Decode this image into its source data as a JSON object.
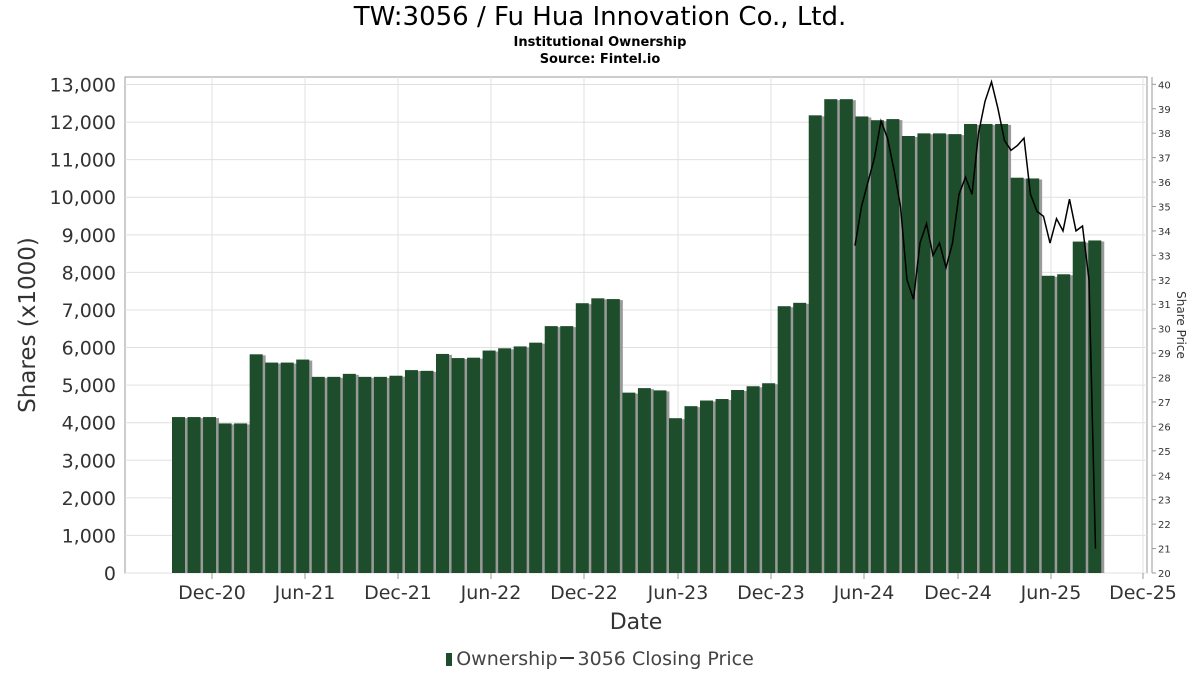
{
  "title": "TW:3056 / Fu Hua Innovation Co., Ltd.",
  "subtitle": "Institutional Ownership",
  "source": "Source: Fintel.io",
  "chart_data": {
    "type": "bar",
    "xlabel": "Date",
    "ylabel": "Shares (x1000)",
    "y2label": "Share Price",
    "ylim": [
      0,
      13200
    ],
    "y2lim": [
      20,
      40.3
    ],
    "yticks": [
      "0",
      "1,000",
      "2,000",
      "3,000",
      "4,000",
      "5,000",
      "6,000",
      "7,000",
      "8,000",
      "9,000",
      "10,000",
      "11,000",
      "12,000",
      "13,000"
    ],
    "y2ticks": [
      "20",
      "21",
      "22",
      "23",
      "24",
      "25",
      "26",
      "27",
      "28",
      "29",
      "30",
      "31",
      "32",
      "33",
      "34",
      "35",
      "36",
      "37",
      "38",
      "39",
      "40"
    ],
    "xticks": [
      "Dec-20",
      "Jun-21",
      "Dec-21",
      "Jun-22",
      "Dec-22",
      "Jun-23",
      "Dec-23",
      "Jun-24",
      "Dec-24",
      "Jun-25",
      "Dec-25"
    ],
    "grid": true,
    "legend_position": "bottom",
    "series": [
      {
        "name": "Ownership",
        "color": "#1e4d2b",
        "values": [
          4150,
          4150,
          4150,
          3980,
          3980,
          5820,
          5600,
          5600,
          5680,
          5220,
          5220,
          5300,
          5220,
          5220,
          5250,
          5400,
          5380,
          5830,
          5720,
          5730,
          5920,
          5980,
          6030,
          6130,
          6570,
          6570,
          7180,
          7310,
          7290,
          4800,
          4920,
          4860,
          4120,
          4440,
          4590,
          4630,
          4870,
          4970,
          5050,
          7100,
          7190,
          12180,
          12610,
          12610,
          12150,
          12050,
          12080,
          11630,
          11700,
          11700,
          11680,
          11950,
          11950,
          11950,
          10520,
          10500,
          7910,
          7950,
          8820,
          8850
        ]
      },
      {
        "name": "3056 Closing Price",
        "color": "#000000",
        "points": [
          [
            "Jun-24",
            33.4
          ],
          [
            "Jun-24",
            35
          ],
          [
            "Jun-24",
            36
          ],
          [
            "Jun-24",
            37
          ],
          [
            "Jun-24",
            38.5
          ],
          [
            "Jun-24",
            37.8
          ],
          [
            "Jun-24",
            36.5
          ],
          [
            "Dec-24",
            35
          ],
          [
            "Dec-24",
            32
          ],
          [
            "Dec-24",
            31.2
          ],
          [
            "Dec-24",
            33.5
          ],
          [
            "Dec-24",
            34.3
          ],
          [
            "Dec-24",
            33
          ],
          [
            "Dec-24",
            33.5
          ],
          [
            "Dec-24",
            32.5
          ],
          [
            "Dec-24",
            33.5
          ],
          [
            "Dec-24",
            35.5
          ],
          [
            "Dec-24",
            36.2
          ],
          [
            "Dec-24",
            35.5
          ],
          [
            "Dec-24",
            38
          ],
          [
            "Dec-24",
            39.3
          ],
          [
            "Jun-25",
            40.1
          ],
          [
            "Jun-25",
            39
          ],
          [
            "Jun-25",
            37.7
          ],
          [
            "Jun-25",
            37.3
          ],
          [
            "Jun-25",
            37.5
          ],
          [
            "Jun-25",
            37.8
          ],
          [
            "Jun-25",
            35.5
          ],
          [
            "Jun-25",
            34.8
          ],
          [
            "Jun-25",
            34.6
          ],
          [
            "Jun-25",
            33.5
          ],
          [
            "Jun-25",
            34.5
          ],
          [
            "Jun-25",
            34
          ],
          [
            "Jun-25",
            35.3
          ],
          [
            "Jun-25",
            34
          ],
          [
            "Jun-25",
            34.2
          ],
          [
            "Jun-25",
            32
          ],
          [
            "Jun-25",
            21
          ]
        ]
      }
    ]
  }
}
